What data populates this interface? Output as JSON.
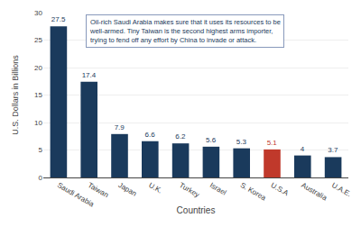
{
  "chart_data": {
    "type": "bar",
    "categories": [
      "Saudi Arabia",
      "Taiwan",
      "Japan",
      "U.K.",
      "Turkey",
      "Israel",
      "S. Korea",
      "U.S.A",
      "Australia",
      "U.A.E."
    ],
    "values": [
      27.5,
      17.4,
      7.9,
      6.6,
      6.2,
      5.6,
      5.3,
      5.1,
      4,
      3.7
    ],
    "colors": [
      "#1a3a5c",
      "#1a3a5c",
      "#1a3a5c",
      "#1a3a5c",
      "#1a3a5c",
      "#1a3a5c",
      "#1a3a5c",
      "#c0392b",
      "#1a3a5c",
      "#1a3a5c"
    ],
    "xlabel": "Countries",
    "ylabel": "U.S. Dollars in Billions",
    "ylim": [
      0,
      30
    ],
    "yticks": [
      0,
      5,
      10,
      15,
      20,
      25,
      30
    ],
    "grid": true,
    "data_labels": true,
    "annotation": "Oil-rich Saudi Arabia makes sure that it uses its resources to be\nwell-armed. Tiny Taiwan is the second highest arms importer,\ntrying to fend off any effort by China to invade or attack."
  }
}
